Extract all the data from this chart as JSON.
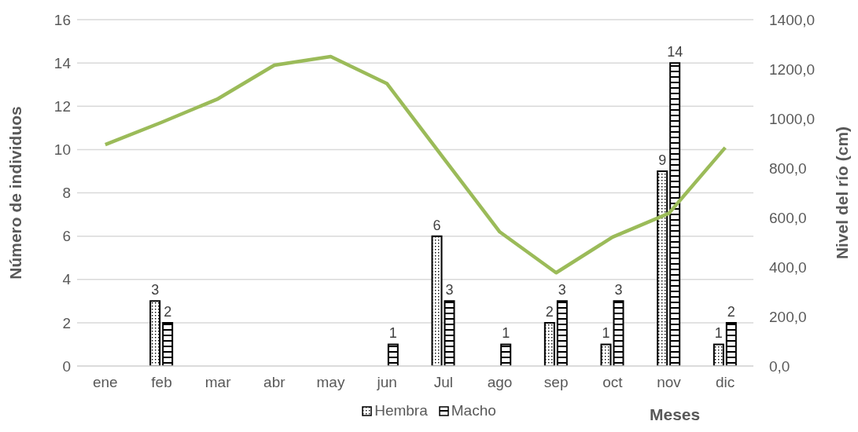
{
  "chart_data": {
    "type": "bar",
    "xlabel": "Meses",
    "ylabel": "Número de individuos",
    "y2label": "Nivel del río (cm)",
    "categories": [
      "ene",
      "feb",
      "mar",
      "abr",
      "may",
      "jun",
      "Jul",
      "ago",
      "sep",
      "oct",
      "nov",
      "dic"
    ],
    "series": [
      {
        "name": "Hembra",
        "color": "#000000",
        "values": [
          null,
          3,
          null,
          null,
          null,
          null,
          6,
          null,
          2,
          1,
          9,
          1
        ],
        "value_labels": [
          null,
          "3",
          null,
          null,
          null,
          null,
          "6",
          null,
          "2",
          "1",
          "9",
          "1"
        ]
      },
      {
        "name": "Macho",
        "color": "#000000",
        "values": [
          null,
          2,
          null,
          null,
          null,
          1,
          3,
          1,
          3,
          3,
          14,
          2
        ],
        "value_labels": [
          null,
          "2",
          null,
          null,
          null,
          "1",
          "3",
          "1",
          "3",
          "3",
          "14",
          "2"
        ]
      },
      {
        "type": "line",
        "axis": "y2",
        "color": "#9bbb59",
        "values": [
          895,
          985,
          1080,
          1216,
          1251,
          1141,
          841,
          542,
          377,
          521,
          617,
          883
        ]
      }
    ],
    "ylim": [
      0,
      16
    ],
    "yticks": [
      0,
      2,
      4,
      6,
      8,
      10,
      12,
      14,
      16
    ],
    "y2lim": [
      0,
      1400
    ],
    "y2ticks": [
      {
        "value": 0,
        "label": "0,0"
      },
      {
        "value": 200,
        "label": "200,0"
      },
      {
        "value": 400,
        "label": "400,0"
      },
      {
        "value": 600,
        "label": "600,0"
      },
      {
        "value": 800,
        "label": "800,0"
      },
      {
        "value": 1000,
        "label": "1000,0"
      },
      {
        "value": 1200,
        "label": "1200,0"
      },
      {
        "value": 1400,
        "label": "1400,0"
      }
    ],
    "grid": "y",
    "legend": "bottom",
    "marker": "none"
  }
}
